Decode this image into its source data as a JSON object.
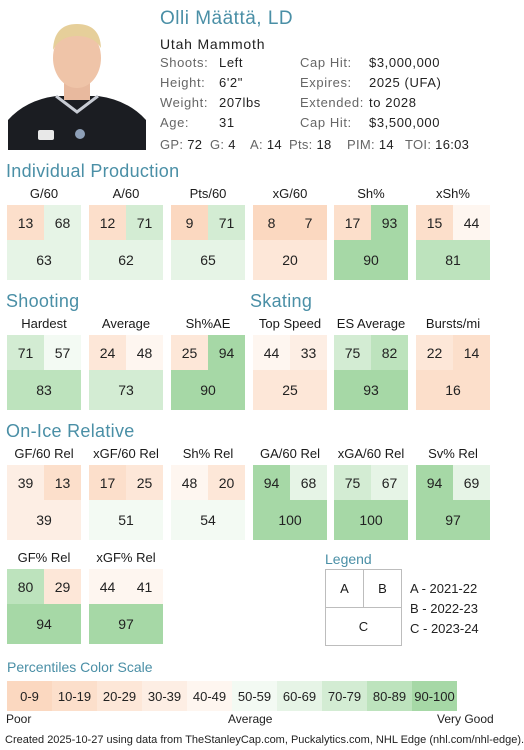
{
  "player": {
    "name": "Olli Määttä, LD",
    "team": "Utah Mammoth",
    "info": [
      {
        "label": "Shoots:",
        "value": "Left"
      },
      {
        "label": "Height:",
        "value": "6'2\""
      },
      {
        "label": "Weight:",
        "value": "207lbs"
      },
      {
        "label": "Age:",
        "value": "31"
      }
    ],
    "contract": [
      {
        "label": "Cap Hit:",
        "value": "$3,000,000"
      },
      {
        "label": "Expires:",
        "value": "2025 (UFA)"
      },
      {
        "label": "Extended:",
        "value": "to 2028"
      },
      {
        "label": "Cap Hit:",
        "value": "$3,500,000"
      }
    ],
    "statline": [
      {
        "k": "GP:",
        "v": "72"
      },
      {
        "k": "G:",
        "v": "4"
      },
      {
        "k": "A:",
        "v": "14"
      },
      {
        "k": "Pts:",
        "v": "18"
      },
      {
        "k": "PIM:",
        "v": "14"
      },
      {
        "k": "TOI:",
        "v": "16:03"
      }
    ]
  },
  "sections": {
    "individual": "Individual Production",
    "shooting": "Shooting",
    "skating": "Skating",
    "onice": "On-Ice Relative"
  },
  "metrics": {
    "individual": [
      {
        "label": "G/60",
        "a": 13,
        "b": 68,
        "c": 63
      },
      {
        "label": "A/60",
        "a": 12,
        "b": 71,
        "c": 62
      },
      {
        "label": "Pts/60",
        "a": 9,
        "b": 71,
        "c": 65
      },
      {
        "label": "xG/60",
        "a": 8,
        "b": 7,
        "c": 20
      },
      {
        "label": "Sh%",
        "a": 17,
        "b": 93,
        "c": 90
      },
      {
        "label": "xSh%",
        "a": 15,
        "b": 44,
        "c": 81
      }
    ],
    "shooting_skating": [
      {
        "label": "Hardest",
        "a": 71,
        "b": 57,
        "c": 83
      },
      {
        "label": "Average",
        "a": 24,
        "b": 48,
        "c": 73
      },
      {
        "label": "Sh%AE",
        "a": 25,
        "b": 94,
        "c": 90
      },
      {
        "label": "Top Speed",
        "a": 44,
        "b": 33,
        "c": 25
      },
      {
        "label": "ES Average",
        "a": 75,
        "b": 82,
        "c": 93
      },
      {
        "label": "Bursts/mi",
        "a": 22,
        "b": 14,
        "c": 16
      }
    ],
    "onice1": [
      {
        "label": "GF/60 Rel",
        "a": 39,
        "b": 13,
        "c": 39
      },
      {
        "label": "xGF/60 Rel",
        "a": 17,
        "b": 25,
        "c": 51
      },
      {
        "label": "Sh% Rel",
        "a": 48,
        "b": 20,
        "c": 54
      },
      {
        "label": "GA/60 Rel",
        "a": 94,
        "b": 68,
        "c": 100
      },
      {
        "label": "xGA/60 Rel",
        "a": 75,
        "b": 67,
        "c": 100
      },
      {
        "label": "Sv% Rel",
        "a": 94,
        "b": 69,
        "c": 97
      }
    ],
    "onice2": [
      {
        "label": "GF% Rel",
        "a": 80,
        "b": 29,
        "c": 94
      },
      {
        "label": "xGF% Rel",
        "a": 44,
        "b": 41,
        "c": 97
      }
    ]
  },
  "legend": {
    "title": "Legend",
    "boxes": [
      "A",
      "B",
      "C"
    ],
    "items": [
      "A - 2021-22",
      "B - 2022-23",
      "C - 2023-24"
    ]
  },
  "scale": {
    "title": "Percentiles Color Scale",
    "bins": [
      "0-9",
      "10-19",
      "20-29",
      "30-39",
      "40-49",
      "50-59",
      "60-69",
      "70-79",
      "80-89",
      "90-100"
    ],
    "colors": [
      "#fbd8c0",
      "#fcdfcb",
      "#fde7d8",
      "#fdeee4",
      "#fef6f0",
      "#f3faf3",
      "#e6f4e6",
      "#d3ecd3",
      "#bde3bd",
      "#a6d8a6"
    ],
    "poor": "Poor",
    "average": "Average",
    "very_good": "Very Good"
  },
  "footer": "Created 2025-10-27 using data from TheStanleyCap.com, Puckalytics.com, NHL Edge (nhl.com/nhl-edge)."
}
